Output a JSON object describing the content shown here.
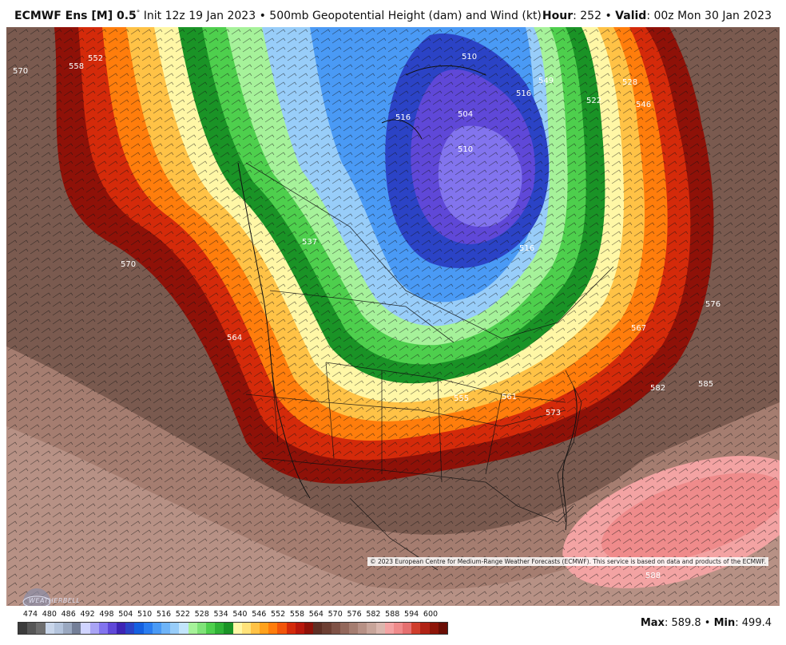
{
  "header": {
    "model": "ECMWF Ens [M] 0.5",
    "degree": "°",
    "init": " Init 12z 19 Jan 2023",
    "bullet": " • ",
    "product": "500mb Geopotential Height (dam) and Wind (kt)",
    "hour_label": "Hour",
    "hour_value": ": 252",
    "valid_label": "Valid",
    "valid_value": ": 00z Mon 30 Jan 2023"
  },
  "copyright": "© 2023 European Centre for Medium-Range Weather Forecasts (ECMWF). This service is based on data and products of the ECMWF.",
  "logo_text": "WEATHERBELL",
  "stats": {
    "max_label": "Max",
    "max_value": ": 589.8",
    "sep": " • ",
    "min_label": "Min",
    "min_value": ": 499.4"
  },
  "contour_labels": [
    "570",
    "558",
    "552",
    "510",
    "516",
    "504",
    "510",
    "522",
    "528",
    "546",
    "549",
    "570",
    "564",
    "537",
    "516",
    "567",
    "576",
    "561",
    "555",
    "573",
    "582",
    "585",
    "588",
    "516"
  ],
  "legend": {
    "labels": [
      "474",
      "480",
      "486",
      "492",
      "498",
      "504",
      "510",
      "516",
      "522",
      "528",
      "534",
      "540",
      "546",
      "552",
      "558",
      "564",
      "570",
      "576",
      "582",
      "588",
      "594",
      "600"
    ],
    "colors": [
      "#3b3b3b",
      "#565656",
      "#6e6e6e",
      "#c9d6ea",
      "#b4c4dc",
      "#9aa8c0",
      "#747f98",
      "#d0d4ff",
      "#a9a4f5",
      "#8274ee",
      "#5f48d8",
      "#3d24b4",
      "#2b43c6",
      "#1560e0",
      "#2a7df0",
      "#4a9af5",
      "#6eb4f8",
      "#98cdf9",
      "#c2e5fb",
      "#a6f29a",
      "#7fe378",
      "#4ecf4d",
      "#2fb236",
      "#1a9326",
      "#fff7a6",
      "#ffe27a",
      "#ffc246",
      "#ffa21c",
      "#ff7d0c",
      "#f2550a",
      "#d42a0a",
      "#b8170b",
      "#8f1108",
      "#5e2f24",
      "#6d3f33",
      "#7f5246",
      "#93685b",
      "#a57d70",
      "#b79185",
      "#c8a59a",
      "#dab7ae",
      "#f3a3a3",
      "#ef8b8b",
      "#e57070",
      "#cf3d2c",
      "#b02215",
      "#8e1509",
      "#6a0d05"
    ]
  }
}
